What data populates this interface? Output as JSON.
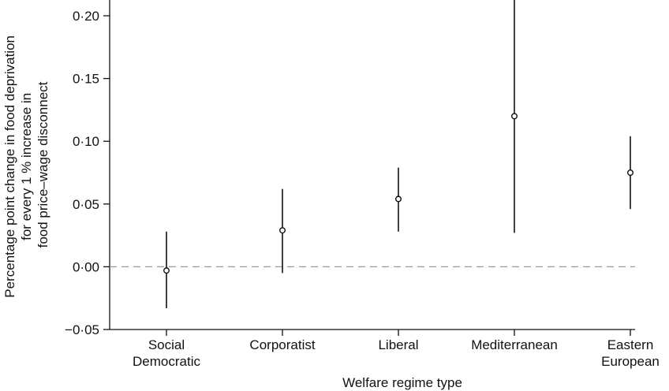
{
  "chart_data": {
    "type": "scatter",
    "subtype": "point-with-error-bars",
    "xlabel": "Welfare regime type",
    "ylabel": [
      "Percentage point change in food deprivation",
      "for every 1 % increase in",
      "food price–wage disconnect"
    ],
    "ylim": [
      -0.05,
      0.22
    ],
    "yticks": [
      -0.05,
      0.0,
      0.05,
      0.1,
      0.15,
      0.2
    ],
    "ytick_labels": [
      "−0·05",
      "0·00",
      "0·05",
      "0·10",
      "0·15",
      "0·20"
    ],
    "reference_line": {
      "y": 0.0,
      "style": "dashed",
      "color": "#999999"
    },
    "grid": false,
    "categories": [
      {
        "lines": [
          "Social",
          "Democratic"
        ]
      },
      {
        "lines": [
          "Corporatist"
        ]
      },
      {
        "lines": [
          "Liberal"
        ]
      },
      {
        "lines": [
          "Mediterranean"
        ]
      },
      {
        "lines": [
          "Eastern",
          "European"
        ]
      }
    ],
    "points": [
      {
        "estimate": -0.003,
        "lower": -0.033,
        "upper": 0.028
      },
      {
        "estimate": 0.029,
        "lower": -0.005,
        "upper": 0.062
      },
      {
        "estimate": 0.054,
        "lower": 0.028,
        "upper": 0.079
      },
      {
        "estimate": 0.12,
        "lower": 0.027,
        "upper": 0.22
      },
      {
        "estimate": 0.075,
        "lower": 0.046,
        "upper": 0.104
      }
    ],
    "colors": {
      "marks": "#111111",
      "axis": "#111111",
      "reference": "#999999"
    }
  }
}
